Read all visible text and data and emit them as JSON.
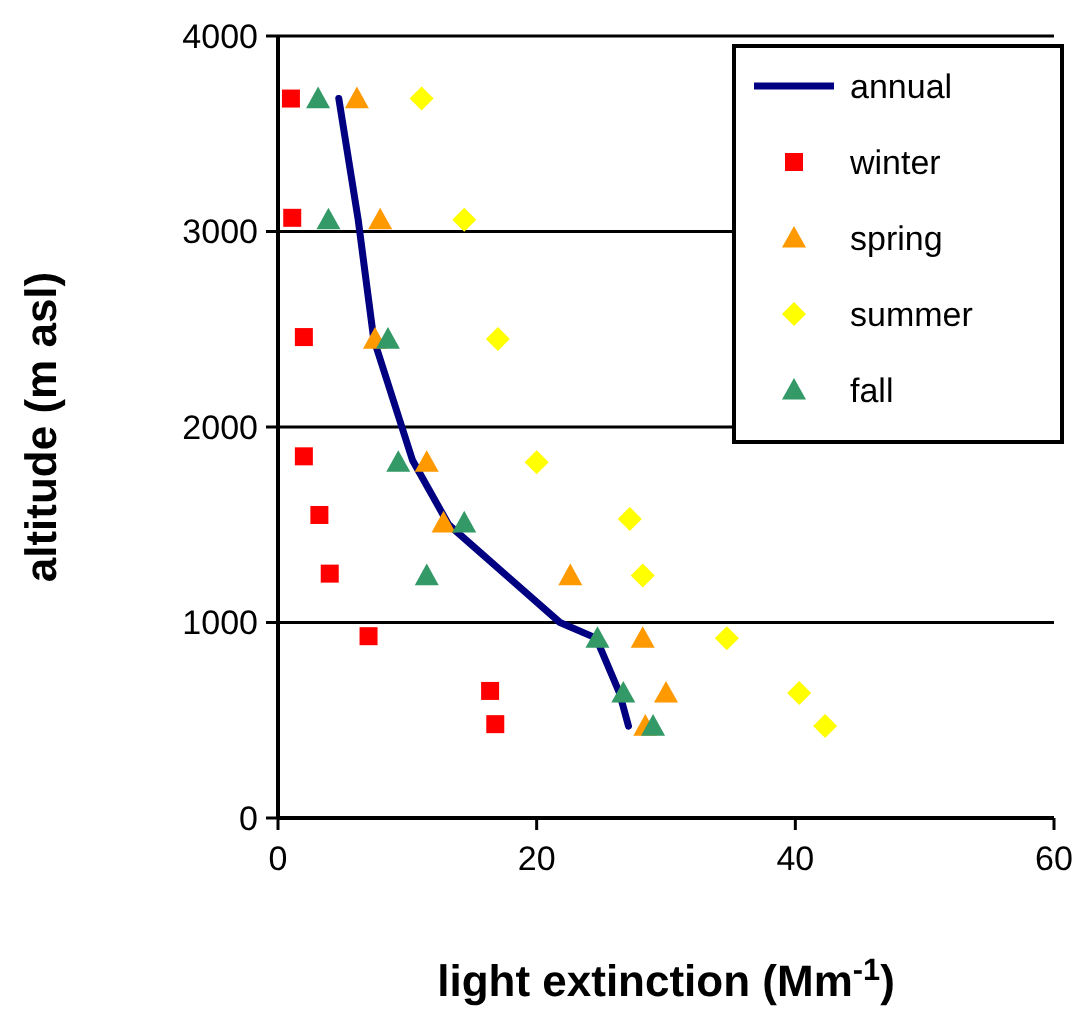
{
  "chart_data": {
    "type": "scatter",
    "xlabel": "light extinction (Mm$^{-1}$)",
    "ylabel": "altitude (m asl)",
    "xlim": [
      0,
      60
    ],
    "xticks": [
      0,
      20,
      40,
      60
    ],
    "ylim": [
      0,
      4000
    ],
    "yticks": [
      0,
      1000,
      2000,
      3000,
      4000
    ],
    "grid": "y",
    "legend": "top right",
    "series": [
      {
        "name": "annual",
        "type": "line",
        "color": "#000080",
        "marker": "none",
        "x": [
          4.7,
          6.2,
          7.4,
          10.4,
          13.2,
          21.8,
          24.6,
          26.4,
          27.1
        ],
        "values": [
          3680,
          3060,
          2450,
          1830,
          1500,
          1000,
          920,
          640,
          470
        ]
      },
      {
        "name": "winter",
        "color": "#ff0000",
        "marker": "square",
        "x": [
          1.0,
          1.1,
          2.0,
          2.0,
          3.2,
          4.0,
          7.0,
          16.4,
          16.8
        ],
        "values": [
          3680,
          3070,
          2460,
          1850,
          1550,
          1250,
          930,
          650,
          480
        ]
      },
      {
        "name": "spring",
        "color": "#ff9900",
        "marker": "triangle",
        "x": [
          6.1,
          7.9,
          7.5,
          11.5,
          12.8,
          22.6,
          28.2,
          30.0,
          28.4
        ],
        "values": [
          3680,
          3060,
          2450,
          1820,
          1510,
          1240,
          920,
          640,
          470
        ]
      },
      {
        "name": "summer",
        "color": "#ffff00",
        "marker": "diamond",
        "x": [
          11.1,
          14.4,
          17.0,
          20.0,
          27.2,
          28.2,
          34.7,
          40.3,
          42.3
        ],
        "values": [
          3680,
          3060,
          2450,
          1820,
          1530,
          1240,
          920,
          640,
          470
        ]
      },
      {
        "name": "fall",
        "color": "#339966",
        "marker": "triangle",
        "x": [
          3.1,
          3.9,
          8.5,
          9.3,
          14.4,
          11.5,
          24.7,
          26.7,
          29.0
        ],
        "values": [
          3680,
          3060,
          2450,
          1820,
          1510,
          1240,
          920,
          640,
          470
        ]
      }
    ]
  }
}
